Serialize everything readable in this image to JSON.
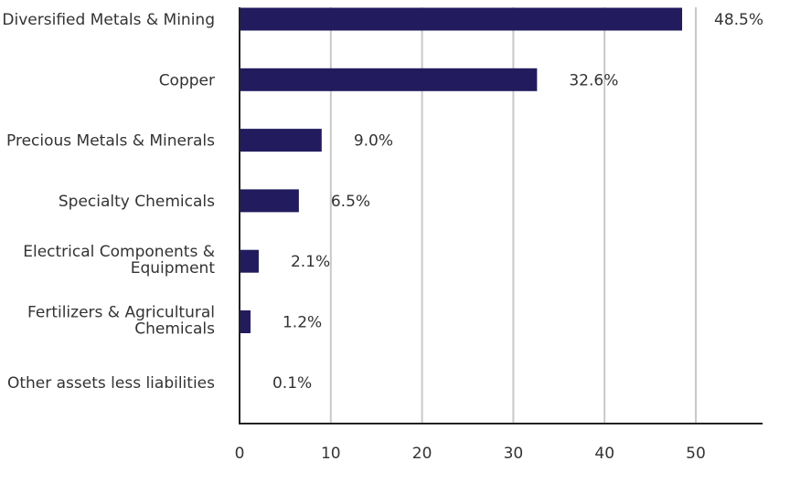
{
  "chart_data": {
    "type": "bar",
    "orientation": "horizontal",
    "categories": [
      [
        "Diversified Metals & Mining"
      ],
      [
        "Copper"
      ],
      [
        "Precious Metals & Minerals"
      ],
      [
        "Specialty Chemicals"
      ],
      [
        "Electrical Components &",
        "Equipment"
      ],
      [
        "Fertilizers & Agricultural",
        "Chemicals"
      ],
      [
        "Other assets less liabilities"
      ]
    ],
    "values": [
      48.5,
      32.6,
      9.0,
      6.5,
      2.1,
      1.2,
      0.1
    ],
    "data_labels": [
      "48.5%",
      "32.6%",
      "9.0%",
      "6.5%",
      "2.1%",
      "1.2%",
      "0.1%"
    ],
    "xlim": [
      0,
      57
    ],
    "xticks": [
      0,
      10,
      20,
      30,
      40,
      50
    ],
    "grid": "vertical",
    "bar_color": "#221c5e",
    "grid_color": "#c8c8c8",
    "axis_color": "#222222",
    "title": "",
    "xlabel": "",
    "ylabel": ""
  }
}
